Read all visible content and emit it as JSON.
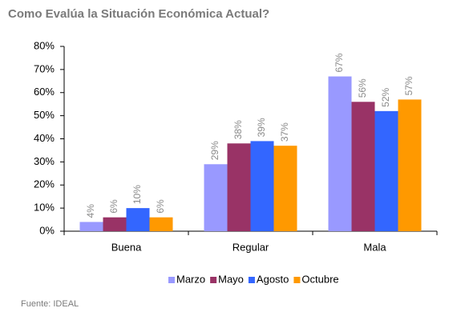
{
  "chart_data": {
    "type": "bar",
    "title": "Como Evalúa la Situación Económica Actual?",
    "source": "Fuente: IDEAL",
    "categories": [
      "Buena",
      "Regular",
      "Mala"
    ],
    "series": [
      {
        "name": "Marzo",
        "color": "#9999ff",
        "values": [
          4,
          29,
          67
        ],
        "value_labels": [
          "4%",
          "29%",
          "67%"
        ]
      },
      {
        "name": "Mayo",
        "color": "#993366",
        "values": [
          6,
          38,
          56
        ],
        "value_labels": [
          "6%",
          "38%",
          "56%"
        ]
      },
      {
        "name": "Agosto",
        "color": "#3366ff",
        "values": [
          10,
          39,
          52
        ],
        "value_labels": [
          "10%",
          "39%",
          "52%"
        ]
      },
      {
        "name": "Octubre",
        "color": "#ff9900",
        "values": [
          6,
          37,
          57
        ],
        "value_labels": [
          "6%",
          "37%",
          "57%"
        ]
      }
    ],
    "ylim": [
      0,
      80
    ],
    "yticks": [
      {
        "value": 0,
        "label": "0%"
      },
      {
        "value": 10,
        "label": "10%"
      },
      {
        "value": 20,
        "label": "20%"
      },
      {
        "value": 30,
        "label": "30%"
      },
      {
        "value": 40,
        "label": "40%"
      },
      {
        "value": 50,
        "label": "50%"
      },
      {
        "value": 60,
        "label": "60%"
      },
      {
        "value": 70,
        "label": "70%"
      },
      {
        "value": 80,
        "label": "80%"
      }
    ],
    "grid": false
  }
}
